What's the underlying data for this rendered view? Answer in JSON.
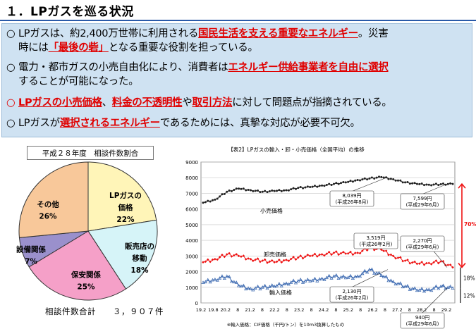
{
  "header": {
    "title": "１．LPガスを巡る状況"
  },
  "bullets": [
    {
      "marker": "○",
      "t1": "LPガスは、約2,400万世帯に利用される",
      "h1": "国民生活を支える重要なエネルギー",
      "t2": "。災害",
      "line2a": "時には",
      "h2": "「最後の砦」",
      "line2b": "となる重要な役割を担っている。"
    },
    {
      "marker": "○",
      "t1": "電力・都市ガスの小売自由化により、消費者は",
      "h1": "エネルギー供給事業者を自由に選択",
      "line2": "することが可能になった。"
    },
    {
      "marker": "○",
      "h1": "LPガスの小売価格",
      "t1": "、",
      "h2": "料金の不透明性",
      "t2": "や",
      "h3": "取引方法",
      "t3": "に対して問題点が指摘されている。"
    },
    {
      "marker": "○",
      "t1": "LPガスが",
      "h1": "選択されるエネルギー",
      "t2": "であるためには、真摯な対応が必要不可欠。"
    }
  ],
  "pie": {
    "title": "平成２８年度　相談件数割合",
    "total_label": "相談件数合計　　３，９０７件",
    "slices": [
      {
        "label1": "LPガスの",
        "label2": "価格",
        "pct": "22%",
        "value": 22,
        "color": "#fff5b8"
      },
      {
        "label1": "販売店の",
        "label2": "移動",
        "pct": "18%",
        "value": 18,
        "color": "#d6f4f8"
      },
      {
        "label1": "保安関係",
        "label2": "",
        "pct": "25%",
        "value": 25,
        "color": "#f5a0c8"
      },
      {
        "label1": "設備関係",
        "label2": "",
        "pct": "7%",
        "value": 7,
        "color": "#9a90cc"
      },
      {
        "label1": "その他",
        "label2": "",
        "pct": "26%",
        "value": 26,
        "color": "#f8c89a"
      }
    ]
  },
  "chart": {
    "title": "【表2】LPガスの輸入・卸・小売価格（全国平均）の推移",
    "y_ticks": [
      "9000",
      "8000",
      "7000",
      "6000",
      "5000",
      "4000",
      "3000",
      "2000",
      "1000",
      "0"
    ],
    "x_ticks": [
      "19.2",
      "19.8",
      "20.2",
      "8",
      "21.2",
      "8",
      "22.2",
      "8",
      "23.2",
      "8",
      "24.2",
      "8",
      "25.2",
      "8",
      "26.2",
      "8",
      "27.2",
      "8",
      "28.2",
      "8",
      "29.2"
    ],
    "series_labels": {
      "retail": "小売価格",
      "wholesale": "卸売価格",
      "import": "輸入価格"
    },
    "annotations": {
      "a1_1": "8,039円",
      "a1_2": "(平成26年8月)",
      "a2_1": "7,599円",
      "a2_2": "(平成29年6月)",
      "a3_1": "3,519円",
      "a3_2": "(平成26年2月)",
      "a4_1": "2,270円",
      "a4_2": "(平成29年6月)",
      "a5_1": "2,130円",
      "a5_2": "(平成26年2月)",
      "a6_1": "940円",
      "a6_2": "(平成29年6月)"
    },
    "pct_70": "70%",
    "pct_18": "18%",
    "pct_12": "12%",
    "note": "※輸入価格：CIF価格（千円/トン）を10m3換算したもの",
    "colors": {
      "retail": "#222222",
      "wholesale": "#ee1111",
      "import": "#3a68b0",
      "arrow": "#ee1111"
    }
  },
  "chart_data": {
    "type": "line",
    "title": "【表2】LPガスの輸入・卸・小売価格（全国平均）の推移",
    "x": [
      "19.2",
      "19.8",
      "20.2",
      "20.8",
      "21.2",
      "21.8",
      "22.2",
      "22.8",
      "23.2",
      "23.8",
      "24.2",
      "24.8",
      "25.2",
      "25.8",
      "26.2",
      "26.8",
      "27.2",
      "27.8",
      "28.2",
      "28.8",
      "29.2",
      "29.6"
    ],
    "ylim": [
      0,
      9000
    ],
    "series": [
      {
        "name": "小売価格",
        "values": [
          6400,
          6600,
          7100,
          7300,
          7200,
          7100,
          7150,
          7200,
          7350,
          7400,
          7500,
          7600,
          7700,
          7850,
          7950,
          8039,
          7900,
          7700,
          7600,
          7550,
          7580,
          7599
        ]
      },
      {
        "name": "卸売価格",
        "values": [
          2600,
          2800,
          3100,
          3000,
          2800,
          2700,
          2600,
          2750,
          2900,
          3000,
          3100,
          3200,
          3150,
          3200,
          3519,
          3400,
          3000,
          2700,
          2500,
          2550,
          2650,
          2270
        ]
      },
      {
        "name": "輸入価格",
        "values": [
          1300,
          1500,
          1700,
          1100,
          900,
          1000,
          1050,
          1250,
          1400,
          1400,
          1550,
          1700,
          1600,
          1700,
          2130,
          1750,
          1350,
          1050,
          800,
          850,
          1050,
          940
        ]
      }
    ]
  }
}
